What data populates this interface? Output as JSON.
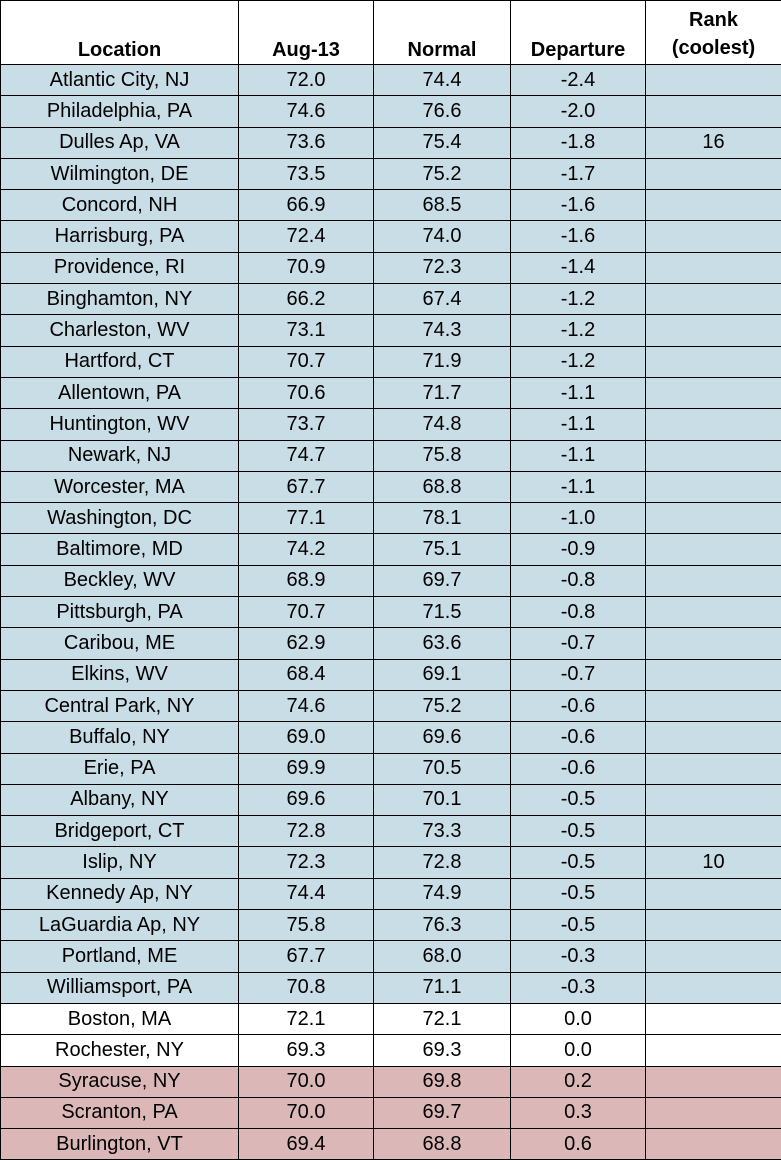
{
  "table": {
    "header": {
      "location": "Location",
      "date": "Aug-13",
      "normal": "Normal",
      "departure": "Departure",
      "rank": "Rank (coolest)"
    },
    "rows": [
      {
        "location": "Atlantic City, NJ",
        "date": "72.0",
        "normal": "74.4",
        "departure": "-2.4"
      },
      {
        "location": "Philadelphia, PA",
        "date": "74.6",
        "normal": "76.6",
        "departure": "-2.0"
      },
      {
        "location": "Dulles Ap, VA",
        "date": "73.6",
        "normal": "75.4",
        "departure": "-1.8",
        "rank": "16"
      },
      {
        "location": "Wilmington, DE",
        "date": "73.5",
        "normal": "75.2",
        "departure": "-1.7"
      },
      {
        "location": "Concord, NH",
        "date": "66.9",
        "normal": "68.5",
        "departure": "-1.6"
      },
      {
        "location": "Harrisburg, PA",
        "date": "72.4",
        "normal": "74.0",
        "departure": "-1.6"
      },
      {
        "location": "Providence, RI",
        "date": "70.9",
        "normal": "72.3",
        "departure": "-1.4"
      },
      {
        "location": "Binghamton, NY",
        "date": "66.2",
        "normal": "67.4",
        "departure": "-1.2"
      },
      {
        "location": "Charleston, WV",
        "date": "73.1",
        "normal": "74.3",
        "departure": "-1.2"
      },
      {
        "location": "Hartford, CT",
        "date": "70.7",
        "normal": "71.9",
        "departure": "-1.2"
      },
      {
        "location": "Allentown, PA",
        "date": "70.6",
        "normal": "71.7",
        "departure": "-1.1"
      },
      {
        "location": "Huntington, WV",
        "date": "73.7",
        "normal": "74.8",
        "departure": "-1.1"
      },
      {
        "location": "Newark, NJ",
        "date": "74.7",
        "normal": "75.8",
        "departure": "-1.1"
      },
      {
        "location": "Worcester, MA",
        "date": "67.7",
        "normal": "68.8",
        "departure": "-1.1"
      },
      {
        "location": "Washington, DC",
        "date": "77.1",
        "normal": "78.1",
        "departure": "-1.0"
      },
      {
        "location": "Baltimore, MD",
        "date": "74.2",
        "normal": "75.1",
        "departure": "-0.9"
      },
      {
        "location": "Beckley, WV",
        "date": "68.9",
        "normal": "69.7",
        "departure": "-0.8"
      },
      {
        "location": "Pittsburgh, PA",
        "date": "70.7",
        "normal": "71.5",
        "departure": "-0.8"
      },
      {
        "location": "Caribou, ME",
        "date": "62.9",
        "normal": "63.6",
        "departure": "-0.7"
      },
      {
        "location": "Elkins, WV",
        "date": "68.4",
        "normal": "69.1",
        "departure": "-0.7"
      },
      {
        "location": "Central Park, NY",
        "date": "74.6",
        "normal": "75.2",
        "departure": "-0.6"
      },
      {
        "location": "Buffalo, NY",
        "date": "69.0",
        "normal": "69.6",
        "departure": "-0.6"
      },
      {
        "location": "Erie, PA",
        "date": "69.9",
        "normal": "70.5",
        "departure": "-0.6"
      },
      {
        "location": "Albany, NY",
        "date": "69.6",
        "normal": "70.1",
        "departure": "-0.5"
      },
      {
        "location": "Bridgeport, CT",
        "date": "72.8",
        "normal": "73.3",
        "departure": "-0.5"
      },
      {
        "location": "Islip, NY",
        "date": "72.3",
        "normal": "72.8",
        "departure": "-0.5",
        "rank": "10"
      },
      {
        "location": "Kennedy Ap, NY",
        "date": "74.4",
        "normal": "74.9",
        "departure": "-0.5"
      },
      {
        "location": "LaGuardia Ap, NY",
        "date": "75.8",
        "normal": "76.3",
        "departure": "-0.5"
      },
      {
        "location": "Portland, ME",
        "date": "67.7",
        "normal": "68.0",
        "departure": "-0.3"
      },
      {
        "location": "Williamsport, PA",
        "date": "70.8",
        "normal": "71.1",
        "departure": "-0.3"
      },
      {
        "location": "Boston, MA",
        "date": "72.1",
        "normal": "72.1",
        "departure": "0.0"
      },
      {
        "location": "Rochester, NY",
        "date": "69.3",
        "normal": "69.3",
        "departure": "0.0"
      },
      {
        "location": "Syracuse, NY",
        "date": "70.0",
        "normal": "69.8",
        "departure": "0.2"
      },
      {
        "location": "Scranton, PA",
        "date": "70.0",
        "normal": "69.7",
        "departure": "0.3"
      },
      {
        "location": "Burlington, VT",
        "date": "69.4",
        "normal": "68.8",
        "departure": "0.6"
      }
    ]
  }
}
